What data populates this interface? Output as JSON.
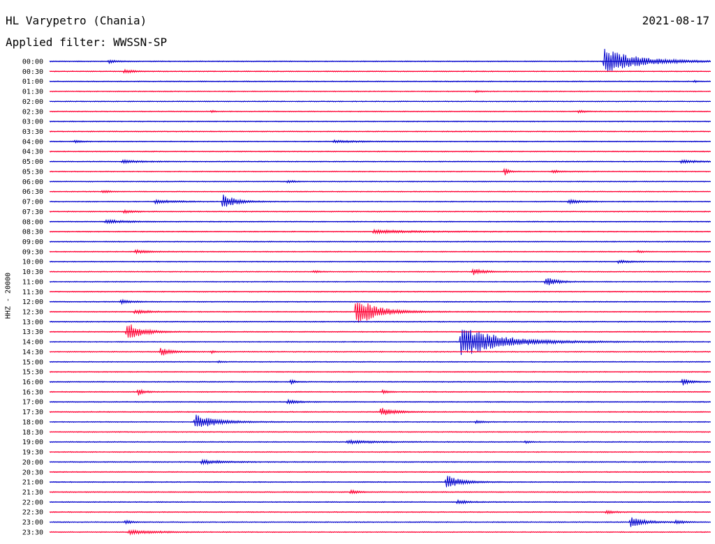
{
  "header": {
    "station": "HL Varypetro (Chania)",
    "date": "2021-08-17",
    "filter": "Applied filter: WWSSN-SP"
  },
  "channel_label": "HHZ - 20000",
  "colors": {
    "even_trace": "#0000cc",
    "odd_trace": "#ff0033",
    "text": "#000000"
  },
  "chart_data": {
    "type": "line",
    "subtype": "helicorder",
    "x_unit": "fraction of 30-minute line",
    "row_labels": [
      "00:00",
      "00:30",
      "01:00",
      "01:30",
      "02:00",
      "02:30",
      "03:00",
      "03:30",
      "04:00",
      "04:30",
      "05:00",
      "05:30",
      "06:00",
      "06:30",
      "07:00",
      "07:30",
      "08:00",
      "08:30",
      "09:00",
      "09:30",
      "10:00",
      "10:30",
      "11:00",
      "11:30",
      "12:00",
      "12:30",
      "13:00",
      "13:30",
      "14:00",
      "14:30",
      "15:00",
      "15:30",
      "16:00",
      "16:30",
      "17:00",
      "17:30",
      "18:00",
      "18:30",
      "19:00",
      "19:30",
      "20:00",
      "20:30",
      "21:00",
      "21:30",
      "22:00",
      "22:30",
      "23:00",
      "23:30"
    ],
    "noise_level": 0.5,
    "events": [
      {
        "row": 0,
        "pos": 0.839,
        "amp": 18,
        "dur": 0.05
      },
      {
        "row": 0,
        "pos": 0.09,
        "amp": 2.5,
        "dur": 0.01
      },
      {
        "row": 1,
        "pos": 0.113,
        "amp": 2.5,
        "dur": 0.015
      },
      {
        "row": 2,
        "pos": 0.975,
        "amp": 1.5,
        "dur": 0.005
      },
      {
        "row": 3,
        "pos": 0.645,
        "amp": 1.5,
        "dur": 0.005
      },
      {
        "row": 5,
        "pos": 0.245,
        "amp": 2,
        "dur": 0.005
      },
      {
        "row": 5,
        "pos": 0.8,
        "amp": 2.5,
        "dur": 0.008
      },
      {
        "row": 8,
        "pos": 0.038,
        "amp": 2,
        "dur": 0.01
      },
      {
        "row": 8,
        "pos": 0.43,
        "amp": 1.5,
        "dur": 0.04
      },
      {
        "row": 10,
        "pos": 0.11,
        "amp": 2,
        "dur": 0.03
      },
      {
        "row": 10,
        "pos": 0.955,
        "amp": 2,
        "dur": 0.03
      },
      {
        "row": 11,
        "pos": 0.688,
        "amp": 6,
        "dur": 0.006
      },
      {
        "row": 11,
        "pos": 0.76,
        "amp": 2,
        "dur": 0.015
      },
      {
        "row": 12,
        "pos": 0.36,
        "amp": 2,
        "dur": 0.01
      },
      {
        "row": 13,
        "pos": 0.08,
        "amp": 2,
        "dur": 0.01
      },
      {
        "row": 14,
        "pos": 0.262,
        "amp": 11,
        "dur": 0.018
      },
      {
        "row": 14,
        "pos": 0.16,
        "amp": 2.5,
        "dur": 0.03
      },
      {
        "row": 14,
        "pos": 0.785,
        "amp": 3,
        "dur": 0.02
      },
      {
        "row": 15,
        "pos": 0.113,
        "amp": 2,
        "dur": 0.015
      },
      {
        "row": 16,
        "pos": 0.085,
        "amp": 2.5,
        "dur": 0.03
      },
      {
        "row": 17,
        "pos": 0.49,
        "amp": 2.5,
        "dur": 0.06
      },
      {
        "row": 19,
        "pos": 0.13,
        "amp": 2.5,
        "dur": 0.02
      },
      {
        "row": 19,
        "pos": 0.89,
        "amp": 1.5,
        "dur": 0.01
      },
      {
        "row": 20,
        "pos": 0.86,
        "amp": 2,
        "dur": 0.02
      },
      {
        "row": 21,
        "pos": 0.64,
        "amp": 5,
        "dur": 0.015
      },
      {
        "row": 21,
        "pos": 0.4,
        "amp": 1.5,
        "dur": 0.01
      },
      {
        "row": 22,
        "pos": 0.75,
        "amp": 7,
        "dur": 0.015
      },
      {
        "row": 24,
        "pos": 0.108,
        "amp": 3,
        "dur": 0.015
      },
      {
        "row": 25,
        "pos": 0.463,
        "amp": 22,
        "dur": 0.03
      },
      {
        "row": 25,
        "pos": 0.129,
        "amp": 3,
        "dur": 0.02
      },
      {
        "row": 27,
        "pos": 0.117,
        "amp": 14,
        "dur": 0.02
      },
      {
        "row": 28,
        "pos": 0.622,
        "amp": 22,
        "dur": 0.06
      },
      {
        "row": 29,
        "pos": 0.168,
        "amp": 6,
        "dur": 0.015
      },
      {
        "row": 29,
        "pos": 0.245,
        "amp": 2,
        "dur": 0.005
      },
      {
        "row": 30,
        "pos": 0.255,
        "amp": 1.5,
        "dur": 0.005
      },
      {
        "row": 32,
        "pos": 0.365,
        "amp": 4,
        "dur": 0.006
      },
      {
        "row": 32,
        "pos": 0.957,
        "amp": 5,
        "dur": 0.012
      },
      {
        "row": 33,
        "pos": 0.134,
        "amp": 5,
        "dur": 0.008
      },
      {
        "row": 33,
        "pos": 0.504,
        "amp": 4,
        "dur": 0.006
      },
      {
        "row": 34,
        "pos": 0.36,
        "amp": 3,
        "dur": 0.015
      },
      {
        "row": 35,
        "pos": 0.501,
        "amp": 6,
        "dur": 0.02
      },
      {
        "row": 36,
        "pos": 0.22,
        "amp": 11,
        "dur": 0.03
      },
      {
        "row": 36,
        "pos": 0.645,
        "amp": 2,
        "dur": 0.01
      },
      {
        "row": 38,
        "pos": 0.45,
        "amp": 2.5,
        "dur": 0.04
      },
      {
        "row": 38,
        "pos": 0.72,
        "amp": 2,
        "dur": 0.005
      },
      {
        "row": 40,
        "pos": 0.23,
        "amp": 3,
        "dur": 0.03
      },
      {
        "row": 42,
        "pos": 0.6,
        "amp": 11,
        "dur": 0.02
      },
      {
        "row": 43,
        "pos": 0.455,
        "amp": 3,
        "dur": 0.01
      },
      {
        "row": 44,
        "pos": 0.617,
        "amp": 3,
        "dur": 0.015
      },
      {
        "row": 45,
        "pos": 0.842,
        "amp": 2.5,
        "dur": 0.012
      },
      {
        "row": 46,
        "pos": 0.879,
        "amp": 8,
        "dur": 0.02
      },
      {
        "row": 46,
        "pos": 0.947,
        "amp": 3,
        "dur": 0.01
      },
      {
        "row": 46,
        "pos": 0.115,
        "amp": 3,
        "dur": 0.008
      },
      {
        "row": 47,
        "pos": 0.12,
        "amp": 3,
        "dur": 0.04
      }
    ]
  }
}
